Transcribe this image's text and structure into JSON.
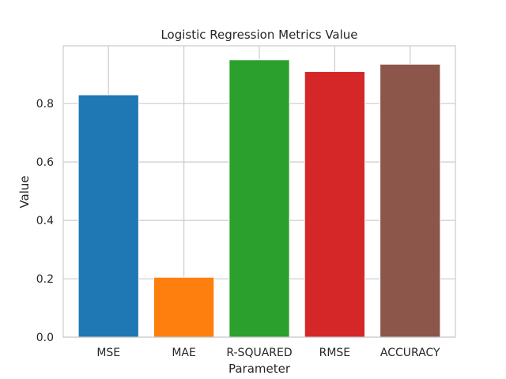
{
  "chart_data": {
    "type": "bar",
    "title": "Logistic Regression Metrics Value",
    "xlabel": "Parameter",
    "ylabel": "Value",
    "categories": [
      "MSE",
      "MAE",
      "R-SQUARED",
      "RMSE",
      "ACCURACY"
    ],
    "values": [
      0.83,
      0.205,
      0.95,
      0.91,
      0.935
    ],
    "colors": [
      "#1f77b4",
      "#ff7f0e",
      "#2ca02c",
      "#d62728",
      "#8c564b"
    ],
    "ylim": [
      0,
      0.998
    ],
    "yticks": [
      0.0,
      0.2,
      0.4,
      0.6,
      0.8
    ],
    "ytick_labels": [
      "0.0",
      "0.2",
      "0.4",
      "0.6",
      "0.8"
    ],
    "grid": true
  }
}
